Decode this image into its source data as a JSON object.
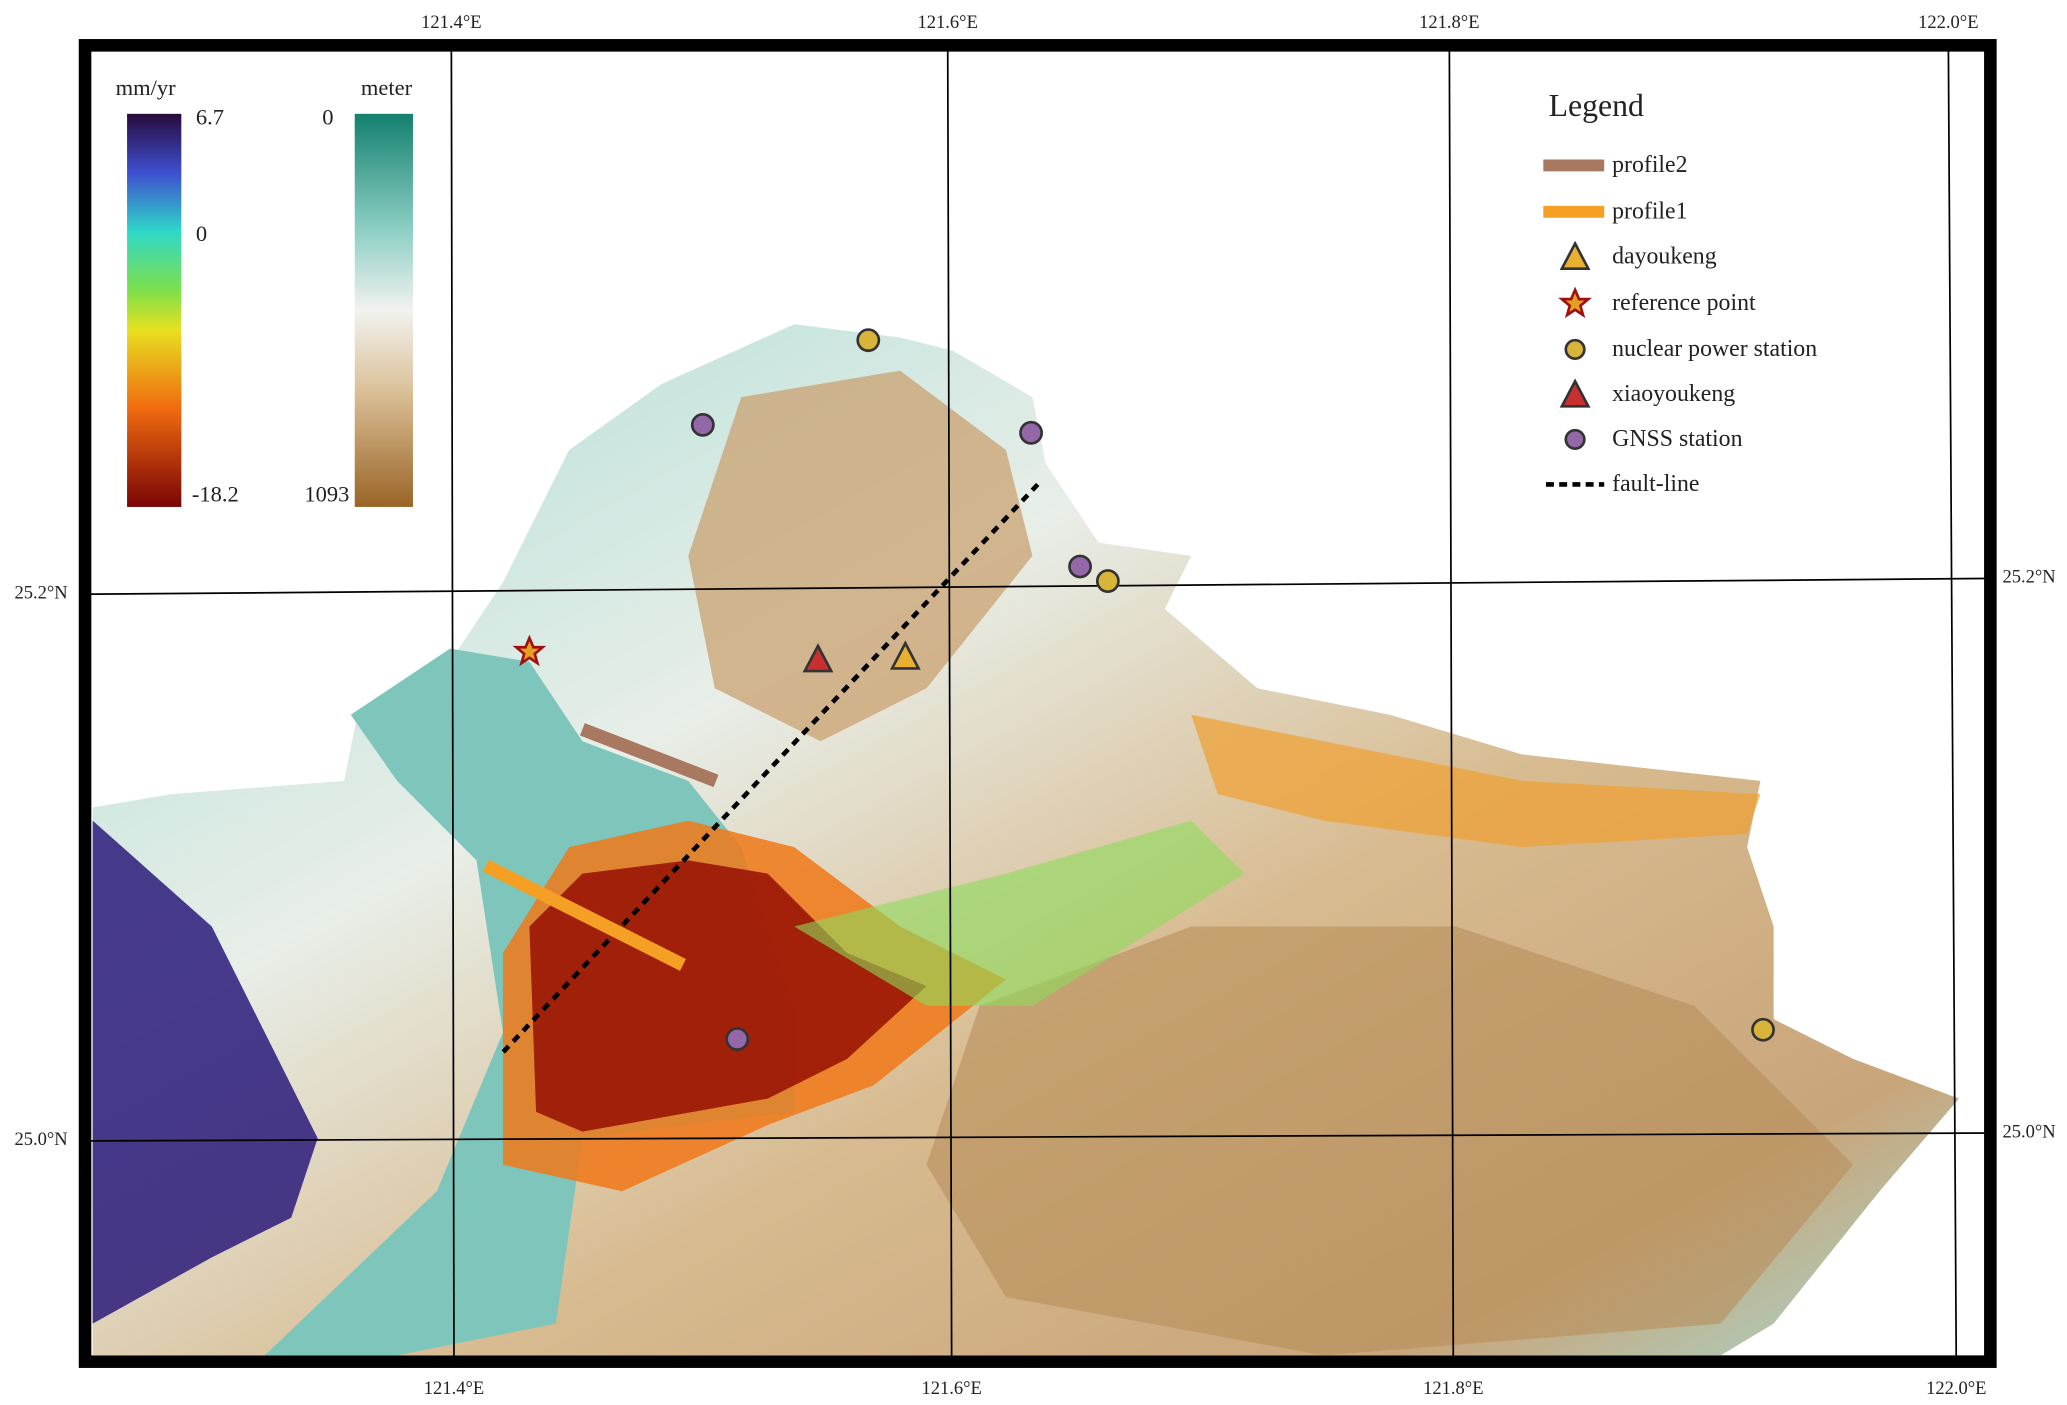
{
  "lon_ticks": [
    "121.4°E",
    "121.6°E",
    "121.8°E",
    "122.0°E"
  ],
  "lat_ticks": [
    "25.2°N",
    "25.0°N"
  ],
  "velocity_colorbar": {
    "unit": "mm/yr",
    "labels": [
      "6.7",
      "0",
      "-18.2"
    ]
  },
  "elevation_colorbar": {
    "unit": "meter",
    "labels": [
      "0",
      "1093"
    ]
  },
  "legend": {
    "title": "Legend",
    "items": [
      "profile2",
      "profile1",
      "dayoukeng",
      "reference point",
      "nuclear power station",
      "xiaoyoukeng",
      "GNSS station",
      "fault-line"
    ]
  }
}
